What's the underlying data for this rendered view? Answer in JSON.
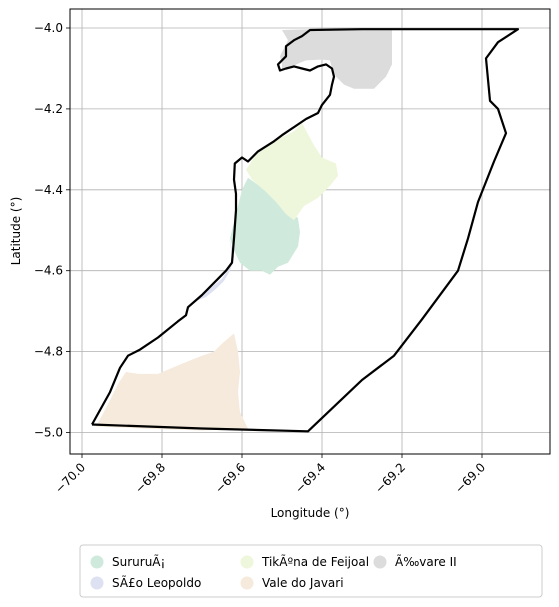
{
  "chart_data": {
    "type": "map",
    "xlabel": "Longitude (°)",
    "ylabel": "Latitude (°)",
    "xlim": [
      -70.03,
      -68.83
    ],
    "ylim": [
      -5.053,
      -3.953
    ],
    "x_ticks": [
      -70.0,
      -69.8,
      -69.6,
      -69.4,
      -69.2,
      -69.0
    ],
    "x_tick_labels": [
      "−70.0",
      "−69.8",
      "−69.6",
      "−69.4",
      "−69.2",
      "−69.0"
    ],
    "y_ticks": [
      -4.0,
      -4.2,
      -4.4,
      -4.6,
      -4.8,
      -5.0
    ],
    "y_tick_labels": [
      "−4.0",
      "−4.2",
      "−4.4",
      "−4.6",
      "−4.8",
      "−5.0"
    ],
    "grid": true,
    "legend_position": "bottom",
    "legend_columns": 3,
    "regions": [
      {
        "name": "SururuÃ¡",
        "color": "#cfeadd",
        "polygon": [
          [
            -69.585,
            -4.37
          ],
          [
            -69.55,
            -4.395
          ],
          [
            -69.515,
            -4.42
          ],
          [
            -69.49,
            -4.445
          ],
          [
            -69.46,
            -4.47
          ],
          [
            -69.455,
            -4.505
          ],
          [
            -69.46,
            -4.54
          ],
          [
            -69.485,
            -4.58
          ],
          [
            -69.51,
            -4.59
          ],
          [
            -69.53,
            -4.61
          ],
          [
            -69.55,
            -4.6
          ],
          [
            -69.58,
            -4.6
          ],
          [
            -69.605,
            -4.58
          ],
          [
            -69.62,
            -4.55
          ],
          [
            -69.63,
            -4.52
          ],
          [
            -69.62,
            -4.48
          ],
          [
            -69.61,
            -4.44
          ],
          [
            -69.6,
            -4.4
          ]
        ]
      },
      {
        "name": "SÃ£o Leopoldo",
        "color": "#dde1f2",
        "polygon": [
          [
            -69.632,
            -4.52
          ],
          [
            -69.625,
            -4.56
          ],
          [
            -69.63,
            -4.59
          ],
          [
            -69.65,
            -4.62
          ],
          [
            -69.675,
            -4.64
          ],
          [
            -69.695,
            -4.655
          ],
          [
            -69.715,
            -4.675
          ],
          [
            -69.69,
            -4.665
          ],
          [
            -69.665,
            -4.645
          ],
          [
            -69.645,
            -4.625
          ],
          [
            -69.63,
            -4.6
          ],
          [
            -69.62,
            -4.565
          ]
        ]
      },
      {
        "name": "TikÃºna de Feijoal",
        "color": "#eef7dc",
        "polygon": [
          [
            -69.56,
            -4.305
          ],
          [
            -69.53,
            -4.285
          ],
          [
            -69.5,
            -4.27
          ],
          [
            -69.47,
            -4.255
          ],
          [
            -69.45,
            -4.235
          ],
          [
            -69.42,
            -4.29
          ],
          [
            -69.4,
            -4.32
          ],
          [
            -69.365,
            -4.335
          ],
          [
            -69.36,
            -4.365
          ],
          [
            -69.38,
            -4.39
          ],
          [
            -69.41,
            -4.42
          ],
          [
            -69.445,
            -4.44
          ],
          [
            -69.47,
            -4.475
          ],
          [
            -69.49,
            -4.46
          ],
          [
            -69.515,
            -4.43
          ],
          [
            -69.54,
            -4.405
          ],
          [
            -69.575,
            -4.375
          ],
          [
            -69.59,
            -4.35
          ]
        ]
      },
      {
        "name": "Vale do Javari",
        "color": "#f5eadb",
        "polygon": [
          [
            -69.965,
            -4.985
          ],
          [
            -69.935,
            -4.93
          ],
          [
            -69.91,
            -4.88
          ],
          [
            -69.89,
            -4.85
          ],
          [
            -69.86,
            -4.855
          ],
          [
            -69.81,
            -4.855
          ],
          [
            -69.75,
            -4.83
          ],
          [
            -69.7,
            -4.81
          ],
          [
            -69.67,
            -4.8
          ],
          [
            -69.65,
            -4.78
          ],
          [
            -69.62,
            -4.755
          ],
          [
            -69.61,
            -4.8
          ],
          [
            -69.605,
            -4.85
          ],
          [
            -69.61,
            -4.9
          ],
          [
            -69.605,
            -4.95
          ],
          [
            -69.585,
            -4.99
          ],
          [
            -69.7,
            -4.995
          ],
          [
            -69.85,
            -4.99
          ]
        ]
      },
      {
        "name": "Ã‰vare II",
        "color": "#dcdcdc",
        "polygon": [
          [
            -69.5,
            -4.005
          ],
          [
            -69.43,
            -4.003
          ],
          [
            -69.3,
            -4.003
          ],
          [
            -69.225,
            -4.003
          ],
          [
            -69.225,
            -4.09
          ],
          [
            -69.24,
            -4.12
          ],
          [
            -69.27,
            -4.15
          ],
          [
            -69.32,
            -4.15
          ],
          [
            -69.345,
            -4.14
          ],
          [
            -69.365,
            -4.12
          ],
          [
            -69.375,
            -4.1
          ],
          [
            -69.38,
            -4.08
          ],
          [
            -69.4,
            -4.078
          ],
          [
            -69.44,
            -4.08
          ],
          [
            -69.46,
            -4.088
          ],
          [
            -69.48,
            -4.098
          ],
          [
            -69.5,
            -4.103
          ],
          [
            -69.5,
            -4.09
          ],
          [
            -69.505,
            -4.07
          ],
          [
            -69.485,
            -4.03
          ]
        ]
      }
    ],
    "boundary": [
      [
        -69.975,
        -4.98
      ],
      [
        -69.93,
        -4.9
      ],
      [
        -69.905,
        -4.84
      ],
      [
        -69.885,
        -4.81
      ],
      [
        -69.855,
        -4.795
      ],
      [
        -69.81,
        -4.765
      ],
      [
        -69.76,
        -4.725
      ],
      [
        -69.74,
        -4.71
      ],
      [
        -69.735,
        -4.69
      ],
      [
        -69.7,
        -4.66
      ],
      [
        -69.66,
        -4.62
      ],
      [
        -69.64,
        -4.6
      ],
      [
        -69.625,
        -4.58
      ],
      [
        -69.62,
        -4.52
      ],
      [
        -69.615,
        -4.45
      ],
      [
        -69.615,
        -4.41
      ],
      [
        -69.62,
        -4.375
      ],
      [
        -69.618,
        -4.335
      ],
      [
        -69.6,
        -4.32
      ],
      [
        -69.585,
        -4.33
      ],
      [
        -69.56,
        -4.305
      ],
      [
        -69.52,
        -4.28
      ],
      [
        -69.5,
        -4.265
      ],
      [
        -69.47,
        -4.245
      ],
      [
        -69.44,
        -4.225
      ],
      [
        -69.41,
        -4.21
      ],
      [
        -69.4,
        -4.19
      ],
      [
        -69.38,
        -4.165
      ],
      [
        -69.375,
        -4.14
      ],
      [
        -69.37,
        -4.12
      ],
      [
        -69.375,
        -4.1
      ],
      [
        -69.39,
        -4.09
      ],
      [
        -69.41,
        -4.095
      ],
      [
        -69.43,
        -4.105
      ],
      [
        -69.45,
        -4.1
      ],
      [
        -69.47,
        -4.095
      ],
      [
        -69.49,
        -4.1
      ],
      [
        -69.505,
        -4.105
      ],
      [
        -69.51,
        -4.09
      ],
      [
        -69.49,
        -4.07
      ],
      [
        -69.49,
        -4.045
      ],
      [
        -69.47,
        -4.03
      ],
      [
        -69.45,
        -4.02
      ],
      [
        -69.43,
        -4.005
      ],
      [
        -69.3,
        -4.003
      ],
      [
        -69.1,
        -4.003
      ],
      [
        -68.91,
        -4.003
      ],
      [
        -68.96,
        -4.035
      ],
      [
        -68.99,
        -4.075
      ],
      [
        -68.98,
        -4.18
      ],
      [
        -68.96,
        -4.2
      ],
      [
        -68.94,
        -4.26
      ],
      [
        -68.97,
        -4.33
      ],
      [
        -69.01,
        -4.43
      ],
      [
        -69.035,
        -4.52
      ],
      [
        -69.06,
        -4.6
      ],
      [
        -69.15,
        -4.72
      ],
      [
        -69.22,
        -4.81
      ],
      [
        -69.3,
        -4.87
      ],
      [
        -69.435,
        -4.997
      ],
      [
        -69.7,
        -4.99
      ],
      [
        -69.975,
        -4.98
      ]
    ]
  }
}
